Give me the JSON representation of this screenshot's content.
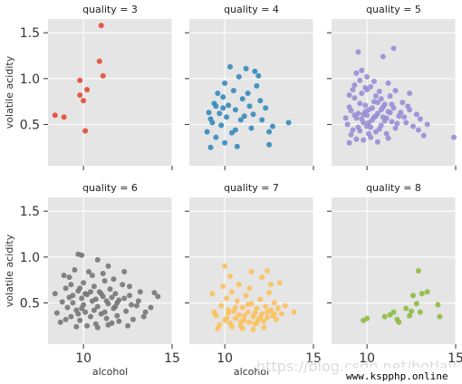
{
  "chart_data": {
    "type": "scatter",
    "facet_var": "quality",
    "xlabel": "alcohol",
    "ylabel": "volatile acidity",
    "xlim": [
      8,
      15
    ],
    "ylim": [
      0.05,
      1.65
    ],
    "xticks": [
      10,
      15
    ],
    "yticks": [
      0.5,
      1.0,
      1.5
    ],
    "grid": true,
    "panels": [
      {
        "title": "quality = 3",
        "color": "#E24A33",
        "points": [
          [
            8.4,
            0.6
          ],
          [
            8.9,
            0.58
          ],
          [
            9.8,
            0.98
          ],
          [
            9.8,
            0.82
          ],
          [
            10.0,
            0.76
          ],
          [
            10.1,
            0.43
          ],
          [
            10.2,
            0.88
          ],
          [
            10.9,
            1.19
          ],
          [
            11.1,
            1.03
          ],
          [
            11.0,
            1.58
          ]
        ]
      },
      {
        "title": "quality = 4",
        "color": "#348ABD",
        "points": [
          [
            9.0,
            0.42
          ],
          [
            9.1,
            0.63
          ],
          [
            9.2,
            0.56
          ],
          [
            9.3,
            0.52
          ],
          [
            9.4,
            0.73
          ],
          [
            9.5,
            0.7
          ],
          [
            9.6,
            0.84
          ],
          [
            9.5,
            0.36
          ],
          [
            9.7,
            0.62
          ],
          [
            9.8,
            0.49
          ],
          [
            9.9,
            0.68
          ],
          [
            10.0,
            0.95
          ],
          [
            10.0,
            0.3
          ],
          [
            10.1,
            0.58
          ],
          [
            10.2,
            0.71
          ],
          [
            10.3,
            1.13
          ],
          [
            10.4,
            0.41
          ],
          [
            10.5,
            0.87
          ],
          [
            10.6,
            0.66
          ],
          [
            10.7,
            0.26
          ],
          [
            10.8,
            1.02
          ],
          [
            10.9,
            0.55
          ],
          [
            11.0,
            0.78
          ],
          [
            11.1,
            0.59
          ],
          [
            11.2,
            1.11
          ],
          [
            11.3,
            0.84
          ],
          [
            11.5,
            0.46
          ],
          [
            11.6,
            0.61
          ],
          [
            11.7,
            1.08
          ],
          [
            11.8,
            0.92
          ],
          [
            11.9,
            1.03
          ],
          [
            12.0,
            0.76
          ],
          [
            12.1,
            0.55
          ],
          [
            12.3,
            0.68
          ],
          [
            12.5,
            0.42
          ],
          [
            12.7,
            0.48
          ],
          [
            12.5,
            0.28
          ],
          [
            13.6,
            0.52
          ],
          [
            9.2,
            0.25
          ],
          [
            10.6,
            0.44
          ],
          [
            11.4,
            0.7
          ],
          [
            9.9,
            0.8
          ]
        ]
      },
      {
        "title": "quality = 5",
        "color": "#988ED5",
        "points": [
          [
            14.9,
            0.36
          ],
          [
            11.5,
            1.33
          ],
          [
            10.9,
            1.24
          ],
          [
            9.5,
            1.29
          ],
          [
            10.0,
            1.02
          ],
          [
            9.7,
            1.09
          ],
          [
            9.1,
            0.65
          ],
          [
            9.2,
            0.44
          ],
          [
            8.9,
            0.5
          ],
          [
            9.0,
            0.69
          ],
          [
            9.3,
            0.79
          ],
          [
            9.4,
            0.57
          ],
          [
            9.5,
            0.62
          ],
          [
            9.6,
            0.43
          ],
          [
            9.7,
            0.84
          ],
          [
            9.8,
            0.52
          ],
          [
            9.9,
            0.71
          ],
          [
            10.0,
            0.48
          ],
          [
            10.1,
            0.66
          ],
          [
            10.2,
            0.91
          ],
          [
            10.3,
            0.55
          ],
          [
            10.4,
            0.75
          ],
          [
            10.5,
            0.42
          ],
          [
            10.6,
            0.62
          ],
          [
            10.7,
            0.86
          ],
          [
            10.8,
            0.49
          ],
          [
            10.9,
            0.58
          ],
          [
            11.0,
            0.72
          ],
          [
            11.1,
            0.4
          ],
          [
            11.2,
            0.64
          ],
          [
            11.3,
            0.81
          ],
          [
            11.4,
            0.53
          ],
          [
            11.5,
            0.68
          ],
          [
            11.6,
            0.46
          ],
          [
            11.8,
            0.59
          ],
          [
            12.0,
            0.74
          ],
          [
            12.2,
            0.52
          ],
          [
            12.4,
            0.66
          ],
          [
            12.6,
            0.48
          ],
          [
            12.8,
            0.61
          ],
          [
            13.0,
            0.56
          ],
          [
            13.2,
            0.38
          ],
          [
            13.4,
            0.5
          ],
          [
            9.0,
            0.3
          ],
          [
            9.2,
            0.88
          ],
          [
            9.4,
            0.34
          ],
          [
            9.6,
            0.98
          ],
          [
            9.8,
            0.33
          ],
          [
            10.0,
            0.88
          ],
          [
            10.2,
            0.36
          ],
          [
            10.4,
            0.97
          ],
          [
            10.6,
            0.31
          ],
          [
            10.8,
            0.78
          ],
          [
            11.2,
            0.35
          ],
          [
            11.6,
            0.87
          ],
          [
            12.4,
            0.84
          ],
          [
            12.9,
            0.44
          ],
          [
            9.3,
            0.6
          ],
          [
            9.5,
            0.47
          ],
          [
            9.7,
            0.56
          ],
          [
            9.9,
            0.64
          ],
          [
            10.1,
            0.52
          ],
          [
            10.3,
            0.68
          ],
          [
            10.5,
            0.59
          ],
          [
            10.7,
            0.45
          ],
          [
            10.9,
            0.69
          ],
          [
            11.1,
            0.57
          ],
          [
            11.3,
            0.63
          ],
          [
            11.7,
            0.51
          ],
          [
            12.1,
            0.58
          ],
          [
            8.8,
            0.57
          ],
          [
            9.0,
            0.82
          ],
          [
            9.1,
            0.39
          ],
          [
            9.3,
            0.93
          ],
          [
            9.6,
            0.73
          ],
          [
            9.8,
            0.61
          ],
          [
            10.0,
            0.6
          ],
          [
            10.2,
            0.47
          ],
          [
            10.4,
            0.58
          ],
          [
            10.6,
            0.74
          ],
          [
            10.8,
            0.66
          ],
          [
            11.0,
            0.54
          ],
          [
            11.4,
            0.72
          ],
          [
            11.9,
            0.63
          ],
          [
            12.3,
            0.7
          ],
          [
            9.4,
            1.06
          ],
          [
            9.9,
            0.9
          ],
          [
            10.1,
            0.4
          ],
          [
            10.5,
            0.81
          ],
          [
            11.2,
            0.95
          ]
        ]
      },
      {
        "title": "quality = 6",
        "color": "#777777",
        "points": [
          [
            9.7,
            1.03
          ],
          [
            9.9,
            1.02
          ],
          [
            10.8,
            0.97
          ],
          [
            11.4,
            0.9
          ],
          [
            12.3,
            0.84
          ],
          [
            14.0,
            0.61
          ],
          [
            14.2,
            0.57
          ],
          [
            13.5,
            0.4
          ],
          [
            8.4,
            0.6
          ],
          [
            8.5,
            0.39
          ],
          [
            8.7,
            0.29
          ],
          [
            8.8,
            0.51
          ],
          [
            9.0,
            0.66
          ],
          [
            9.1,
            0.45
          ],
          [
            9.2,
            0.78
          ],
          [
            9.3,
            0.35
          ],
          [
            9.4,
            0.58
          ],
          [
            9.5,
            0.86
          ],
          [
            9.6,
            0.42
          ],
          [
            9.7,
            0.63
          ],
          [
            9.8,
            0.31
          ],
          [
            9.9,
            0.55
          ],
          [
            10.0,
            0.72
          ],
          [
            10.1,
            0.4
          ],
          [
            10.2,
            0.59
          ],
          [
            10.3,
            0.84
          ],
          [
            10.4,
            0.35
          ],
          [
            10.5,
            0.52
          ],
          [
            10.6,
            0.68
          ],
          [
            10.7,
            0.27
          ],
          [
            10.8,
            0.46
          ],
          [
            10.9,
            0.62
          ],
          [
            11.0,
            0.38
          ],
          [
            11.1,
            0.57
          ],
          [
            11.2,
            0.74
          ],
          [
            11.3,
            0.33
          ],
          [
            11.4,
            0.49
          ],
          [
            11.5,
            0.65
          ],
          [
            11.6,
            0.28
          ],
          [
            11.7,
            0.44
          ],
          [
            11.8,
            0.6
          ],
          [
            11.9,
            0.36
          ],
          [
            12.0,
            0.53
          ],
          [
            12.2,
            0.7
          ],
          [
            12.4,
            0.41
          ],
          [
            12.6,
            0.58
          ],
          [
            12.8,
            0.32
          ],
          [
            13.0,
            0.47
          ],
          [
            13.2,
            0.62
          ],
          [
            13.4,
            0.35
          ],
          [
            13.8,
            0.45
          ],
          [
            9.0,
            0.32
          ],
          [
            9.3,
            0.7
          ],
          [
            9.6,
            0.24
          ],
          [
            9.9,
            0.44
          ],
          [
            10.2,
            0.25
          ],
          [
            10.5,
            0.8
          ],
          [
            10.8,
            0.23
          ],
          [
            11.1,
            0.82
          ],
          [
            11.4,
            0.26
          ],
          [
            11.7,
            0.76
          ],
          [
            12.0,
            0.3
          ],
          [
            12.5,
            0.25
          ],
          [
            8.9,
            0.8
          ],
          [
            9.4,
            0.5
          ],
          [
            9.8,
            0.66
          ],
          [
            10.0,
            0.48
          ],
          [
            10.4,
            0.62
          ],
          [
            10.7,
            0.54
          ],
          [
            11.0,
            0.6
          ],
          [
            11.3,
            0.52
          ],
          [
            11.6,
            0.56
          ],
          [
            11.9,
            0.5
          ],
          [
            12.3,
            0.55
          ],
          [
            12.7,
            0.48
          ],
          [
            13.1,
            0.52
          ],
          [
            9.2,
            0.56
          ],
          [
            9.7,
            0.38
          ],
          [
            10.1,
            0.6
          ],
          [
            10.6,
            0.42
          ],
          [
            11.2,
            0.4
          ],
          [
            11.8,
            0.46
          ],
          [
            12.6,
            0.68
          ]
        ]
      },
      {
        "title": "quality = 7",
        "color": "#FBC15E",
        "points": [
          [
            10.0,
            0.9
          ],
          [
            10.3,
            0.79
          ],
          [
            11.5,
            0.84
          ],
          [
            12.1,
            0.78
          ],
          [
            12.4,
            0.85
          ],
          [
            13.1,
            0.72
          ],
          [
            13.4,
            0.47
          ],
          [
            13.9,
            0.4
          ],
          [
            9.3,
            0.6
          ],
          [
            9.5,
            0.36
          ],
          [
            9.7,
            0.26
          ],
          [
            9.8,
            0.47
          ],
          [
            10.0,
            0.31
          ],
          [
            10.1,
            0.55
          ],
          [
            10.2,
            0.39
          ],
          [
            10.3,
            0.28
          ],
          [
            10.4,
            0.62
          ],
          [
            10.5,
            0.41
          ],
          [
            10.6,
            0.33
          ],
          [
            10.7,
            0.52
          ],
          [
            10.8,
            0.37
          ],
          [
            10.9,
            0.25
          ],
          [
            11.0,
            0.45
          ],
          [
            11.1,
            0.31
          ],
          [
            11.2,
            0.58
          ],
          [
            11.3,
            0.4
          ],
          [
            11.4,
            0.29
          ],
          [
            11.5,
            0.49
          ],
          [
            11.6,
            0.35
          ],
          [
            11.7,
            0.27
          ],
          [
            11.8,
            0.44
          ],
          [
            11.9,
            0.32
          ],
          [
            12.0,
            0.54
          ],
          [
            12.1,
            0.38
          ],
          [
            12.2,
            0.3
          ],
          [
            12.3,
            0.46
          ],
          [
            12.4,
            0.34
          ],
          [
            12.5,
            0.61
          ],
          [
            12.6,
            0.42
          ],
          [
            12.7,
            0.36
          ],
          [
            12.8,
            0.5
          ],
          [
            12.9,
            0.32
          ],
          [
            13.0,
            0.44
          ],
          [
            13.2,
            0.38
          ],
          [
            9.6,
            0.22
          ],
          [
            10.4,
            0.24
          ],
          [
            11.0,
            0.22
          ],
          [
            11.6,
            0.21
          ],
          [
            12.2,
            0.23
          ],
          [
            9.9,
            0.68
          ],
          [
            10.8,
            0.7
          ],
          [
            11.4,
            0.66
          ],
          [
            12.6,
            0.7
          ],
          [
            10.2,
            0.42
          ],
          [
            10.6,
            0.45
          ],
          [
            11.1,
            0.36
          ],
          [
            11.3,
            0.48
          ],
          [
            11.7,
            0.39
          ],
          [
            12.0,
            0.34
          ],
          [
            12.4,
            0.4
          ],
          [
            9.4,
            0.4
          ],
          [
            10.1,
            0.33
          ],
          [
            10.9,
            0.3
          ],
          [
            11.8,
            0.28
          ],
          [
            12.8,
            0.38
          ]
        ]
      },
      {
        "title": "quality = 8",
        "color": "#8EBA42",
        "points": [
          [
            9.8,
            0.31
          ],
          [
            10.0,
            0.33
          ],
          [
            11.0,
            0.35
          ],
          [
            11.3,
            0.37
          ],
          [
            11.5,
            0.4
          ],
          [
            11.7,
            0.32
          ],
          [
            11.8,
            0.29
          ],
          [
            12.2,
            0.44
          ],
          [
            12.4,
            0.36
          ],
          [
            12.5,
            0.41
          ],
          [
            12.6,
            0.58
          ],
          [
            12.9,
            0.85
          ],
          [
            12.8,
            0.49
          ],
          [
            13.0,
            0.4
          ],
          [
            13.1,
            0.6
          ],
          [
            13.4,
            0.62
          ],
          [
            14.0,
            0.48
          ],
          [
            14.1,
            0.35
          ]
        ]
      }
    ]
  },
  "watermark": "https://blog.csdn.net/hotlay",
  "badge": "www.kspphp.online"
}
